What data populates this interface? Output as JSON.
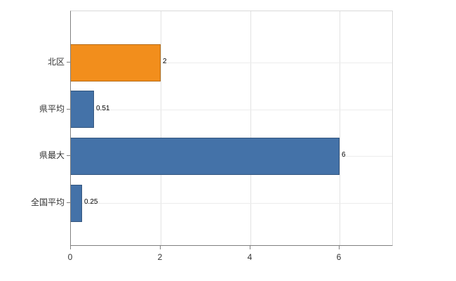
{
  "chart_data": {
    "type": "bar",
    "orientation": "horizontal",
    "title": "",
    "xlabel": "",
    "ylabel": "",
    "categories": [
      "北区",
      "県平均",
      "県最大",
      "全国平均"
    ],
    "values": [
      2,
      0.51,
      6,
      0.25
    ],
    "value_labels": [
      "2",
      "0.51",
      "6",
      "0.25"
    ],
    "bar_colors": [
      "#F28E1C",
      "#4472A8",
      "#4472A8",
      "#4472A8"
    ],
    "x_tick_labels": [
      "0",
      "2",
      "4",
      "6"
    ],
    "x_tick_values": [
      0,
      2,
      4,
      6
    ],
    "xlim": [
      0,
      7.2
    ],
    "grid": true,
    "legend_position": "none",
    "colors": {
      "highlight_bar": "#F28E1C",
      "default_bar": "#4472A8",
      "grid_line": "#e3e3e3",
      "axis_line": "#808080",
      "background": "#ffffff"
    }
  }
}
